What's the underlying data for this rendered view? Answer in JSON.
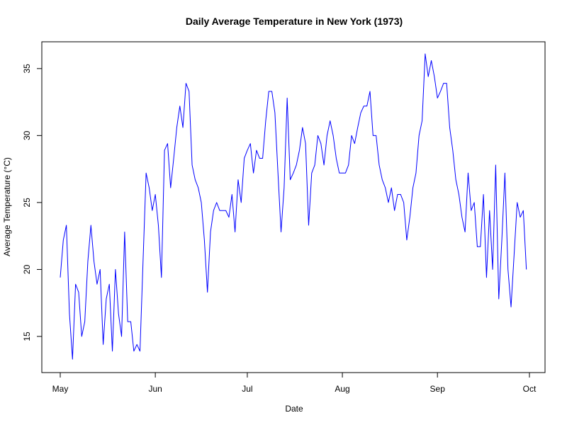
{
  "chart_data": {
    "type": "line",
    "title": "Daily Average Temperature in New York (1973)",
    "xlabel": "Date",
    "ylabel": "Average Temperature (°C)",
    "x_range": [
      "1973-05-01",
      "1973-10-01"
    ],
    "ylim": [
      12.3,
      37.0
    ],
    "y_ticks": [
      15,
      20,
      25,
      30,
      35
    ],
    "x_ticks": [
      {
        "date": "1973-05-01",
        "label": "May"
      },
      {
        "date": "1973-06-01",
        "label": "Jun"
      },
      {
        "date": "1973-07-01",
        "label": "Jul"
      },
      {
        "date": "1973-08-01",
        "label": "Aug"
      },
      {
        "date": "1973-09-01",
        "label": "Sep"
      },
      {
        "date": "1973-10-01",
        "label": "Oct"
      }
    ],
    "grid": false,
    "legend": "none",
    "series": [
      {
        "color": "#0000ff",
        "x_start": "1973-05-01",
        "x_step_days": 1,
        "values": [
          19.4,
          22.2,
          23.3,
          16.7,
          13.3,
          18.9,
          18.3,
          15.0,
          16.1,
          20.6,
          23.3,
          20.6,
          18.9,
          20.0,
          14.4,
          17.8,
          18.9,
          13.9,
          20.0,
          16.7,
          15.0,
          22.8,
          16.1,
          16.1,
          13.9,
          14.4,
          13.9,
          20.6,
          27.2,
          26.1,
          24.4,
          25.6,
          23.3,
          19.4,
          28.9,
          29.4,
          26.1,
          28.3,
          30.6,
          32.2,
          30.6,
          33.9,
          33.3,
          27.8,
          26.7,
          26.1,
          25.0,
          22.2,
          18.3,
          22.8,
          24.4,
          25.0,
          24.4,
          24.4,
          24.4,
          23.9,
          25.6,
          22.8,
          26.7,
          25.0,
          28.3,
          28.9,
          29.4,
          27.2,
          28.9,
          28.3,
          28.3,
          31.1,
          33.3,
          33.3,
          31.7,
          27.2,
          22.8,
          26.1,
          32.8,
          26.7,
          27.2,
          27.8,
          28.9,
          30.6,
          29.4,
          23.3,
          27.2,
          27.8,
          30.0,
          29.4,
          27.8,
          30.0,
          31.1,
          30.0,
          28.3,
          27.2,
          27.2,
          27.2,
          27.8,
          30.0,
          29.4,
          30.6,
          31.7,
          32.2,
          32.2,
          33.3,
          30.0,
          30.0,
          27.8,
          26.7,
          26.1,
          25.0,
          26.1,
          24.4,
          25.6,
          25.6,
          25.0,
          22.2,
          23.9,
          26.1,
          27.2,
          30.0,
          31.1,
          36.1,
          34.4,
          35.6,
          34.4,
          32.8,
          33.3,
          33.9,
          33.9,
          30.6,
          28.9,
          26.7,
          25.6,
          23.9,
          22.8,
          27.2,
          24.4,
          25.0,
          21.7,
          21.7,
          25.6,
          19.4,
          24.4,
          20.0,
          27.8,
          17.8,
          22.2,
          27.2,
          20.0,
          17.2,
          21.1,
          25.0,
          23.9,
          24.4,
          20.0
        ]
      }
    ]
  }
}
